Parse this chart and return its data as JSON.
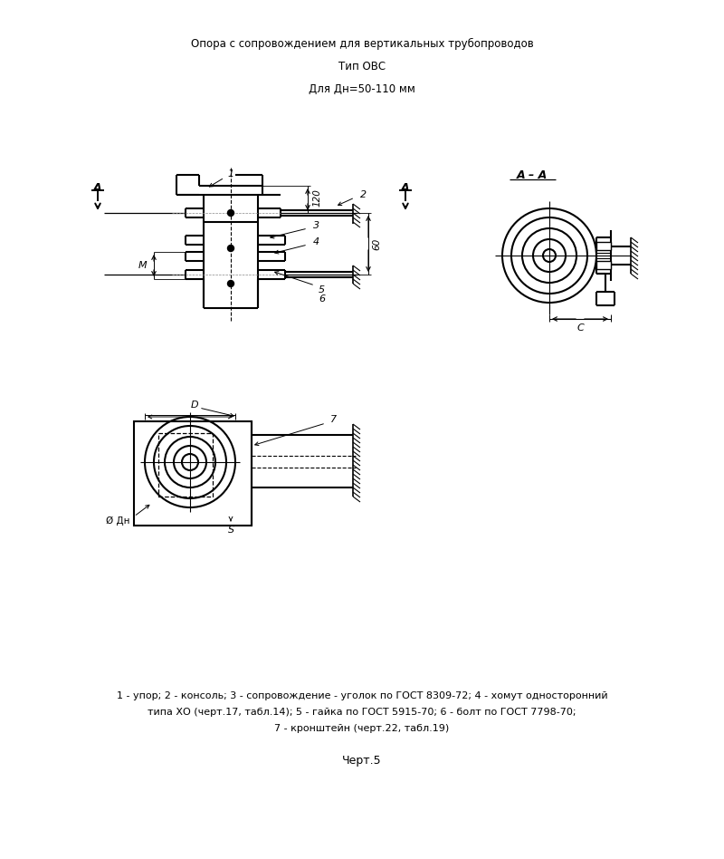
{
  "title1": "Опора с сопровождением для вертикальных трубопроводов",
  "title2": "Тип ОВС",
  "title3": "Для Дн=50-110 мм",
  "caption_line1": "1 - упор; 2 - консоль; 3 - сопровождение - уголок по ГОСТ 8309-72; 4 - хомут односторонний",
  "caption_line2": "типа ХО (черт.17, табл.14); 5 - гайка по ГОСТ 5915-70; 6 - болт по ГОСТ 7798-70;",
  "caption_line3": "7 - кронштейн (черт.22, табл.19)",
  "chert": "Черт.5",
  "bg_color": "#ffffff",
  "line_color": "#000000"
}
